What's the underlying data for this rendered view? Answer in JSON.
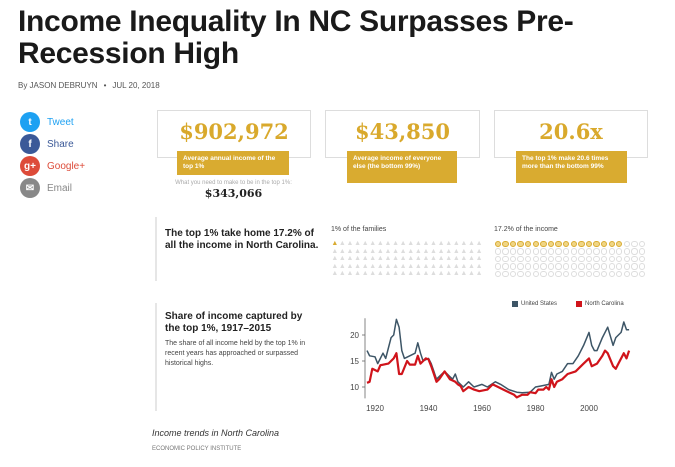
{
  "article": {
    "title": "Income Inequality In NC Surpasses Pre-Recession High",
    "byline": "By JASON DEBRUYN",
    "separator": "•",
    "date": "JUL 20, 2018"
  },
  "social": [
    {
      "label": "Tweet",
      "icon": "twitter-icon",
      "glyph": "t",
      "color": "#1da1f2"
    },
    {
      "label": "Share",
      "icon": "facebook-icon",
      "glyph": "f",
      "color": "#3b5998"
    },
    {
      "label": "Google+",
      "icon": "google-plus-icon",
      "glyph": "g+",
      "color": "#dd4b39"
    },
    {
      "label": "Email",
      "icon": "email-icon",
      "glyph": "✉",
      "color": "#888888"
    }
  ],
  "stats": [
    {
      "value": "$902,972",
      "label": "Average annual income of the top 1%"
    },
    {
      "value": "$43,850",
      "label": "Average income of everyone else (the bottom 99%)"
    },
    {
      "value": "20.6x",
      "label": "The top 1% make 20.6 times more than the bottom 99%"
    }
  ],
  "threshold": {
    "label": "What you need to make to be in the top 1%:",
    "value": "$343,066"
  },
  "share": {
    "heading": "The top 1% take home 17.2% of all the income in North Carolina.",
    "families_label": "1% of the families",
    "families_pct": 1,
    "income_label": "17.2% of the income",
    "income_pct": 17.2
  },
  "chart_section": {
    "heading": "Share of income captured by the top 1%, 1917–2015",
    "body": "The share of all income held by the top 1% in recent years has approached or surpassed historical highs."
  },
  "caption": "Income trends in North Carolina",
  "source": "ECONOMIC POLICY INSTITUTE",
  "colors": {
    "accent": "#d9ab30",
    "us": "#3d5566",
    "nc": "#d0141b"
  },
  "chart_data": {
    "type": "line",
    "title": "",
    "xlabel": "",
    "ylabel": "",
    "xlim": [
      1917,
      2015
    ],
    "ylim": [
      8,
      24
    ],
    "xticks": [
      1920,
      1940,
      1960,
      1980,
      2000
    ],
    "yticks": [
      10,
      15,
      20
    ],
    "grid": false,
    "legend": "top-right",
    "series": [
      {
        "name": "United States",
        "color": "#3d5566",
        "points": [
          [
            1917,
            17
          ],
          [
            1918,
            16
          ],
          [
            1920,
            15.8
          ],
          [
            1921,
            14.5
          ],
          [
            1923,
            16.5
          ],
          [
            1924,
            15.5
          ],
          [
            1925,
            17.5
          ],
          [
            1926,
            19.5
          ],
          [
            1927,
            20
          ],
          [
            1928,
            23
          ],
          [
            1929,
            21.5
          ],
          [
            1930,
            17
          ],
          [
            1931,
            15.5
          ],
          [
            1933,
            16
          ],
          [
            1935,
            16.5
          ],
          [
            1936,
            18.5
          ],
          [
            1937,
            16.5
          ],
          [
            1938,
            15
          ],
          [
            1940,
            15.5
          ],
          [
            1941,
            14.5
          ],
          [
            1942,
            13
          ],
          [
            1943,
            11.5
          ],
          [
            1944,
            12
          ],
          [
            1946,
            13
          ],
          [
            1948,
            12
          ],
          [
            1949,
            11.5
          ],
          [
            1950,
            12.5
          ],
          [
            1951,
            11
          ],
          [
            1953,
            10
          ],
          [
            1955,
            11
          ],
          [
            1957,
            10
          ],
          [
            1960,
            10.5
          ],
          [
            1962,
            10
          ],
          [
            1965,
            11
          ],
          [
            1967,
            10.5
          ],
          [
            1970,
            9.5
          ],
          [
            1973,
            9
          ],
          [
            1975,
            8.9
          ],
          [
            1978,
            9
          ],
          [
            1980,
            10
          ],
          [
            1982,
            10.2
          ],
          [
            1985,
            10.5
          ],
          [
            1986,
            12.8
          ],
          [
            1987,
            11.5
          ],
          [
            1988,
            12.5
          ],
          [
            1990,
            13
          ],
          [
            1992,
            14.5
          ],
          [
            1994,
            14.5
          ],
          [
            1996,
            16
          ],
          [
            1998,
            18
          ],
          [
            2000,
            20.5
          ],
          [
            2001,
            18
          ],
          [
            2002,
            17
          ],
          [
            2003,
            17
          ],
          [
            2005,
            19.5
          ],
          [
            2007,
            21.5
          ],
          [
            2009,
            18
          ],
          [
            2010,
            19.5
          ],
          [
            2012,
            20.5
          ],
          [
            2013,
            22.5
          ],
          [
            2014,
            21
          ],
          [
            2015,
            21
          ]
        ]
      },
      {
        "name": "North Carolina",
        "color": "#d0141b",
        "points": [
          [
            1917,
            10.8
          ],
          [
            1918,
            11
          ],
          [
            1919,
            13.5
          ],
          [
            1921,
            13
          ],
          [
            1922,
            14.2
          ],
          [
            1925,
            14.5
          ],
          [
            1927,
            15.5
          ],
          [
            1928,
            16.5
          ],
          [
            1929,
            12.5
          ],
          [
            1930,
            12.5
          ],
          [
            1932,
            15
          ],
          [
            1933,
            14.3
          ],
          [
            1935,
            14.3
          ],
          [
            1936,
            16
          ],
          [
            1937,
            14.5
          ],
          [
            1939,
            15.5
          ],
          [
            1940,
            15.3
          ],
          [
            1941,
            14
          ],
          [
            1942,
            12.5
          ],
          [
            1943,
            11
          ],
          [
            1944,
            11.5
          ],
          [
            1946,
            13
          ],
          [
            1948,
            11.5
          ],
          [
            1950,
            11
          ],
          [
            1951,
            10.5
          ],
          [
            1952,
            10.2
          ],
          [
            1953,
            9.2
          ],
          [
            1955,
            10
          ],
          [
            1957,
            9.5
          ],
          [
            1959,
            9.2
          ],
          [
            1962,
            9.5
          ],
          [
            1964,
            10.5
          ],
          [
            1966,
            10
          ],
          [
            1968,
            9.5
          ],
          [
            1970,
            9
          ],
          [
            1972,
            8.5
          ],
          [
            1973,
            8
          ],
          [
            1975,
            8.5
          ],
          [
            1977,
            8.5
          ],
          [
            1978,
            9
          ],
          [
            1980,
            8.8
          ],
          [
            1981,
            9.5
          ],
          [
            1983,
            9.5
          ],
          [
            1984,
            10
          ],
          [
            1985,
            9.5
          ],
          [
            1986,
            11.5
          ],
          [
            1987,
            10
          ],
          [
            1988,
            11
          ],
          [
            1990,
            11.5
          ],
          [
            1992,
            12.5
          ],
          [
            1995,
            13
          ],
          [
            1998,
            14.5
          ],
          [
            2000,
            15.5
          ],
          [
            2001,
            14
          ],
          [
            2003,
            14.5
          ],
          [
            2005,
            16
          ],
          [
            2006,
            17
          ],
          [
            2007,
            16.5
          ],
          [
            2009,
            14
          ],
          [
            2010,
            13.5
          ],
          [
            2011,
            14.5
          ],
          [
            2013,
            16.5
          ],
          [
            2014,
            15.5
          ],
          [
            2015,
            17
          ]
        ]
      }
    ]
  }
}
